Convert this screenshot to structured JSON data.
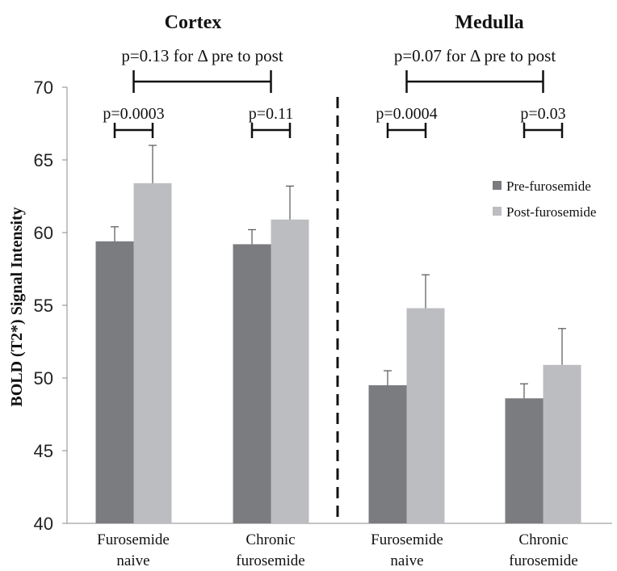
{
  "chart_data": {
    "type": "bar",
    "ylabel": "BOLD (T2*) Signal Intensity",
    "ylim": [
      40,
      70
    ],
    "yticks": [
      40,
      45,
      50,
      55,
      60,
      65,
      70
    ],
    "groups": [
      {
        "title": "Cortex",
        "categories": [
          {
            "lines": [
              "Furosemide",
              "naive"
            ]
          },
          {
            "lines": [
              "Chronic",
              "furosemide"
            ]
          }
        ],
        "pre": [
          59.4,
          59.2
        ],
        "post": [
          63.4,
          60.9
        ],
        "pre_err": [
          1.0,
          1.0
        ],
        "post_err": [
          2.6,
          2.3
        ],
        "comparisons": [
          "p=0.0003",
          "p=0.11"
        ],
        "delta_comparison": "p=0.13 for Δ pre to post"
      },
      {
        "title": "Medulla",
        "categories": [
          {
            "lines": [
              "Furosemide",
              "naive"
            ]
          },
          {
            "lines": [
              "Chronic",
              "furosemide"
            ]
          }
        ],
        "pre": [
          49.5,
          48.6
        ],
        "post": [
          54.8,
          50.9
        ],
        "pre_err": [
          1.0,
          1.0
        ],
        "post_err": [
          2.3,
          2.5
        ],
        "comparisons": [
          "p=0.0004",
          "p=0.03"
        ],
        "delta_comparison": "p=0.07 for Δ pre to post"
      }
    ],
    "series": [
      {
        "name": "Pre-furosemide",
        "color": "#7b7c80"
      },
      {
        "name": "Post-furosemide",
        "color": "#bcbdc1"
      }
    ],
    "legend_position": "right-center",
    "grid": false
  }
}
